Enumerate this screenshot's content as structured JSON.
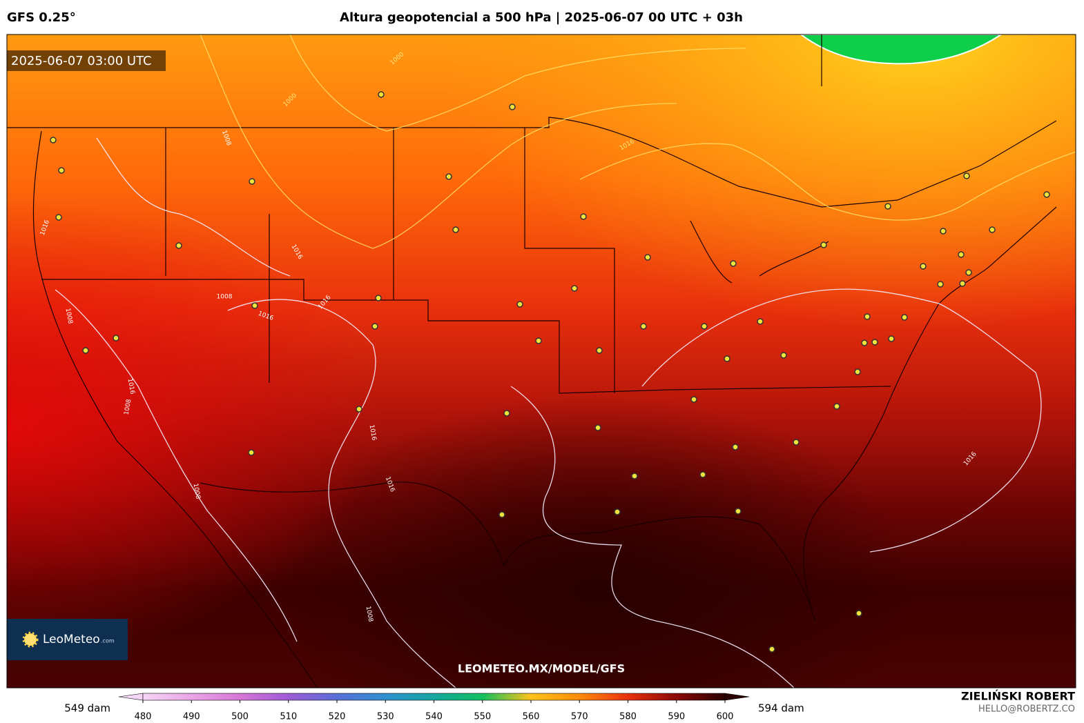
{
  "header": {
    "model": "GFS 0.25°",
    "title": "Altura geopotencial a 500 hPa | 2025-06-07 00 UTC + 03h"
  },
  "map": {
    "timestamp": "2025-06-07 03:00 UTC",
    "logo": "LeoMeteo",
    "logo_suffix": ".com",
    "watermark": "LEOMETEO.MX/MODEL/GFS",
    "contour_labels": [
      "1000",
      "1000",
      "1008",
      "1016",
      "1016",
      "1016",
      "1008",
      "1016",
      "1008",
      "1016",
      "1008",
      "1008",
      "1016",
      "1016",
      "1016",
      "1016",
      "1008"
    ]
  },
  "colorbar": {
    "min_label": "549 dam",
    "max_label": "594 dam",
    "ticks": [
      480,
      490,
      500,
      510,
      520,
      530,
      540,
      550,
      560,
      570,
      580,
      590,
      600
    ],
    "colors": [
      "#f6d6f6",
      "#e9a5e6",
      "#d777d6",
      "#9e5ad6",
      "#5a6fd8",
      "#2f8fd0",
      "#14a6a0",
      "#12c060",
      "#ffc31a",
      "#ff8c0a",
      "#e8300c",
      "#8a0a06",
      "#2a0000"
    ]
  },
  "footer": {
    "author": "ZIELIŃSKI ROBERT",
    "email": "HELLO@ROBERTZ.CO"
  }
}
